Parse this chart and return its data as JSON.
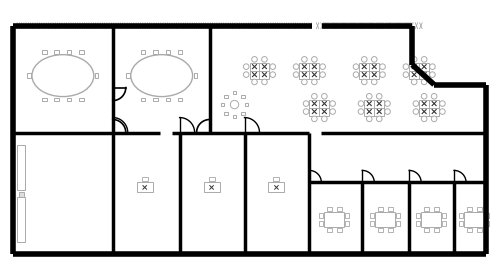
{
  "bg_color": "#ffffff",
  "wall_color": "#000000",
  "furniture_stroke": "#aaaaaa",
  "lw_outer": 4.0,
  "lw_inner": 2.5,
  "lw_furn": 0.7
}
